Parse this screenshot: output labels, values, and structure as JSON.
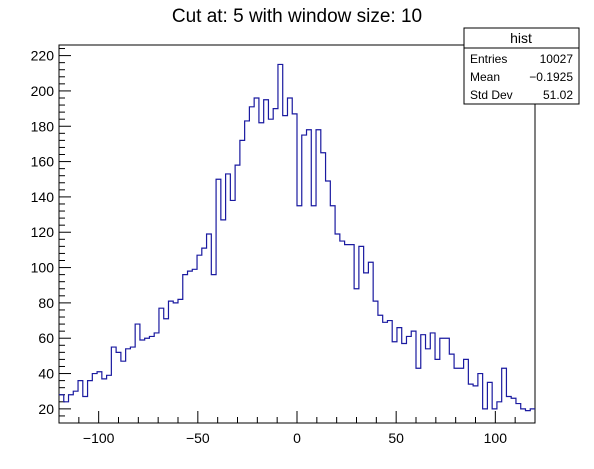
{
  "chart_data": {
    "type": "histogram",
    "title": "Cut at: 5 with window size: 10",
    "xlabel": "",
    "ylabel": "",
    "xlim": [
      -120,
      120
    ],
    "ylim": [
      12,
      226
    ],
    "bin_width": 2.4,
    "x_ticks": [
      -100,
      -50,
      0,
      50,
      100
    ],
    "x_tick_labels": [
      "−100",
      "−50",
      "0",
      "50",
      "100"
    ],
    "y_ticks": [
      20,
      40,
      60,
      80,
      100,
      120,
      140,
      160,
      180,
      200,
      220
    ],
    "y_tick_labels": [
      "20",
      "40",
      "60",
      "80",
      "100",
      "120",
      "140",
      "160",
      "180",
      "200",
      "220"
    ],
    "line_color": "#1a1aa0",
    "values": [
      28,
      24,
      28,
      30,
      36,
      27,
      36,
      40,
      41,
      37,
      39,
      55,
      52,
      47,
      54,
      55,
      68,
      59,
      60,
      61,
      63,
      77,
      71,
      81,
      80,
      82,
      96,
      98,
      99,
      107,
      111,
      119,
      96,
      150,
      127,
      153,
      138,
      158,
      172,
      183,
      191,
      196,
      182,
      195,
      184,
      190,
      215,
      186,
      196,
      187,
      135,
      175,
      178,
      135,
      178,
      165,
      149,
      135,
      119,
      115,
      113,
      113,
      88,
      112,
      97,
      103,
      81,
      73,
      69,
      70,
      58,
      66,
      57,
      61,
      64,
      43,
      62,
      54,
      63,
      48,
      60,
      60,
      51,
      43,
      43,
      48,
      34,
      33,
      40,
      20,
      35,
      20,
      24,
      43,
      27,
      26,
      23,
      20,
      19,
      20
    ]
  },
  "stats_box": {
    "title": "hist",
    "rows": [
      {
        "label": "Entries",
        "value": "10027"
      },
      {
        "label": "Mean",
        "value": "−0.1925"
      },
      {
        "label": "Std Dev",
        "value": "51.02"
      }
    ]
  }
}
